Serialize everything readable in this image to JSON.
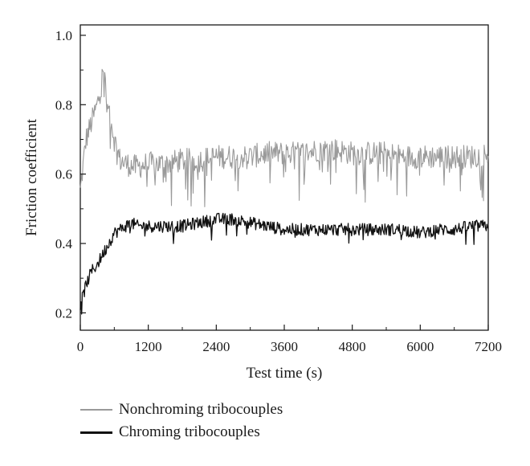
{
  "chart_data": {
    "type": "line",
    "xlabel": "Test time (s)",
    "ylabel": "Friction coefficient",
    "xlim": [
      0,
      7200
    ],
    "ylim": [
      0.15,
      1.03
    ],
    "x_ticks": [
      0,
      1200,
      2400,
      3600,
      4800,
      6000,
      7200
    ],
    "x_tick_labels": [
      "0",
      "1200",
      "2400",
      "3600",
      "4800",
      "6000",
      "7200"
    ],
    "y_ticks": [
      0.2,
      0.4,
      0.6,
      0.8,
      1.0
    ],
    "y_tick_labels": [
      "0.2",
      "0.4",
      "0.6",
      "0.8",
      "1.0"
    ],
    "grid": false,
    "legend_position": "bottom-left, below plot",
    "series": [
      {
        "name": "Nonchroming tribocouples",
        "color": "#9a9a9a",
        "x": [
          0,
          100,
          200,
          300,
          400,
          450,
          500,
          600,
          700,
          800,
          1000,
          1200,
          1500,
          1800,
          2100,
          2400,
          2700,
          3000,
          3300,
          3600,
          3900,
          4200,
          4500,
          4800,
          5100,
          5400,
          5700,
          6000,
          6300,
          6600,
          6900,
          7200
        ],
        "y": [
          0.55,
          0.7,
          0.75,
          0.8,
          0.88,
          0.82,
          0.8,
          0.7,
          0.64,
          0.63,
          0.62,
          0.63,
          0.63,
          0.64,
          0.64,
          0.65,
          0.65,
          0.65,
          0.66,
          0.66,
          0.66,
          0.67,
          0.67,
          0.66,
          0.66,
          0.66,
          0.65,
          0.65,
          0.65,
          0.65,
          0.65,
          0.66
        ]
      },
      {
        "name": "Chroming tribocouples",
        "color": "#111111",
        "x": [
          0,
          100,
          200,
          300,
          400,
          500,
          600,
          700,
          800,
          900,
          1000,
          1200,
          1500,
          1800,
          2100,
          2400,
          2700,
          3000,
          3300,
          3600,
          3900,
          4200,
          4500,
          4800,
          5100,
          5400,
          5700,
          6000,
          6300,
          6600,
          6900,
          7200
        ],
        "y": [
          0.22,
          0.28,
          0.32,
          0.34,
          0.37,
          0.4,
          0.43,
          0.44,
          0.45,
          0.46,
          0.45,
          0.45,
          0.45,
          0.45,
          0.46,
          0.47,
          0.47,
          0.46,
          0.45,
          0.44,
          0.44,
          0.44,
          0.44,
          0.44,
          0.44,
          0.44,
          0.44,
          0.43,
          0.44,
          0.44,
          0.45,
          0.45
        ]
      }
    ]
  }
}
